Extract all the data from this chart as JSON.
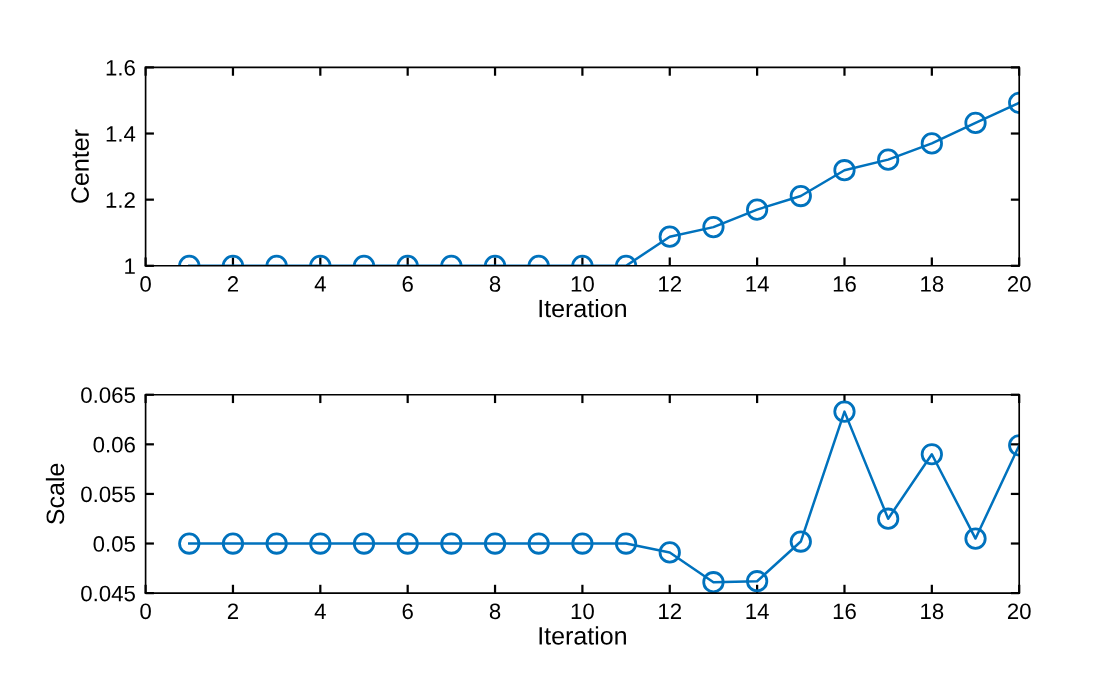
{
  "chart_data": [
    {
      "type": "line",
      "xlabel": "Iteration",
      "ylabel": "Center",
      "x": [
        1,
        2,
        3,
        4,
        5,
        6,
        7,
        8,
        9,
        10,
        11,
        12,
        13,
        14,
        15,
        16,
        17,
        18,
        19,
        20
      ],
      "series": [
        {
          "color": "#0072bd",
          "values": [
            1,
            1,
            1,
            1,
            1,
            1,
            1,
            1,
            1,
            1,
            1,
            1.088,
            1.117,
            1.17,
            1.211,
            1.289,
            1.321,
            1.37,
            1.432,
            1.493
          ]
        }
      ],
      "xlim": [
        0,
        20
      ],
      "xticks": [
        0,
        2,
        4,
        6,
        8,
        10,
        12,
        14,
        16,
        18,
        20
      ],
      "ylim": [
        1,
        1.6
      ],
      "yticks": [
        1,
        {
          "value": 1.2,
          "label": "1.2"
        },
        {
          "value": 1.4,
          "label": "1.4"
        },
        {
          "value": 1.6,
          "label": "1.6"
        }
      ],
      "marker": "circle",
      "line_style": "solid",
      "grid": false,
      "legend": false
    },
    {
      "type": "line",
      "xlabel": "Iteration",
      "ylabel": "Scale",
      "x": [
        1,
        2,
        3,
        4,
        5,
        6,
        7,
        8,
        9,
        10,
        11,
        12,
        13,
        14,
        15,
        16,
        17,
        18,
        19,
        20
      ],
      "series": [
        {
          "color": "#0072bd",
          "values": [
            0.05,
            0.05,
            0.05,
            0.05,
            0.05,
            0.05,
            0.05,
            0.05,
            0.05,
            0.05,
            0.05,
            0.0491,
            0.0461,
            0.0462,
            0.0502,
            0.0633,
            0.0525,
            0.059,
            0.0505,
            0.0599
          ]
        }
      ],
      "xlim": [
        0,
        20
      ],
      "xticks": [
        0,
        2,
        4,
        6,
        8,
        10,
        12,
        14,
        16,
        18,
        20
      ],
      "ylim": [
        0.045,
        0.065
      ],
      "yticks": [
        0.045,
        0.05,
        0.055,
        0.06,
        0.065
      ],
      "marker": "circle",
      "line_style": "solid",
      "grid": false,
      "legend": false
    }
  ]
}
